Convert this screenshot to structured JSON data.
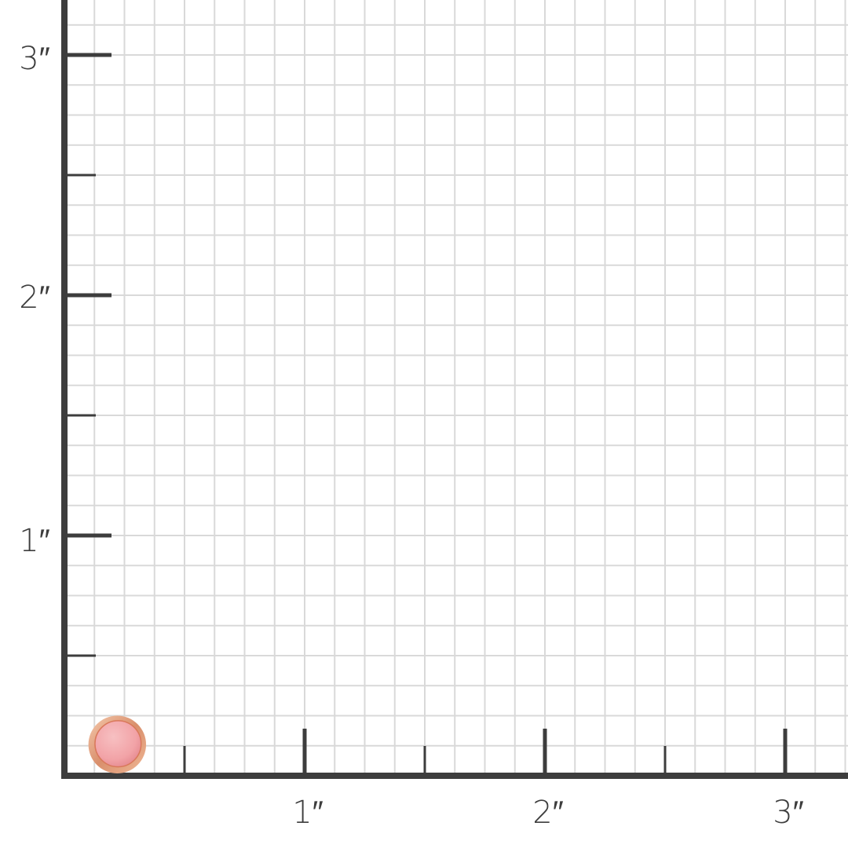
{
  "chart_data": {
    "type": "scatter",
    "title": "",
    "unit": "inch",
    "xlim": [
      0,
      3.2
    ],
    "ylim": [
      0,
      3.2
    ],
    "grid": true,
    "grid_subdivisions_per_unit": 8,
    "x_tick_labels": [
      "1″",
      "2″",
      "3″"
    ],
    "y_tick_labels": [
      "1″",
      "2″",
      "3″"
    ],
    "x_ticks": [
      1,
      2,
      3
    ],
    "y_ticks": [
      1,
      2,
      3
    ],
    "minor_ticks": [
      0.5,
      1.5,
      2.5
    ],
    "item": {
      "name": "pink stud earring",
      "center": [
        0.22,
        0.13
      ],
      "diameter": 0.24
    }
  },
  "colors": {
    "axis": "#3d3d3d",
    "grid": "#d9d9d9",
    "gem": "#f2a3a7",
    "bezel": "#d98f6c"
  }
}
